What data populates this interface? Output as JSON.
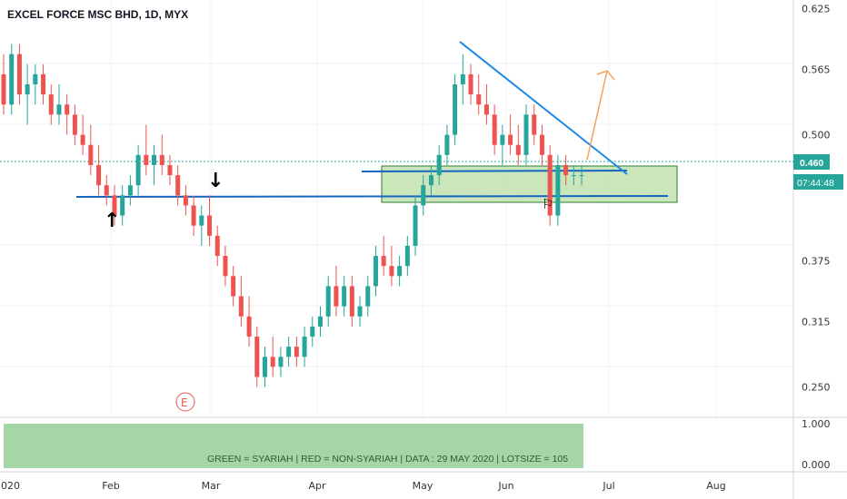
{
  "chart_data": {
    "type": "candlestick",
    "title": "EXCEL FORCE MSC BHD, 1D, MYX",
    "y_ticks": [
      "0.625",
      "0.565",
      "0.500",
      "0.375",
      "0.315",
      "0.250"
    ],
    "x_ticks": [
      "2020",
      "Feb",
      "Mar",
      "Apr",
      "May",
      "Jun",
      "Jul",
      "Aug"
    ],
    "ylim": [
      0.22,
      0.63
    ],
    "last_price": "0.460",
    "countdown": "07:44:48",
    "up_color": "#26a69a",
    "down_color": "#ef5350",
    "candles": [
      [
        0.56,
        0.58,
        0.52,
        0.53
      ],
      [
        0.53,
        0.59,
        0.52,
        0.58
      ],
      [
        0.58,
        0.59,
        0.53,
        0.54
      ],
      [
        0.54,
        0.57,
        0.51,
        0.55
      ],
      [
        0.55,
        0.57,
        0.53,
        0.56
      ],
      [
        0.56,
        0.57,
        0.53,
        0.54
      ],
      [
        0.54,
        0.55,
        0.51,
        0.52
      ],
      [
        0.52,
        0.55,
        0.51,
        0.53
      ],
      [
        0.53,
        0.54,
        0.5,
        0.52
      ],
      [
        0.52,
        0.53,
        0.49,
        0.5
      ],
      [
        0.5,
        0.52,
        0.48,
        0.49
      ],
      [
        0.49,
        0.51,
        0.46,
        0.47
      ],
      [
        0.47,
        0.49,
        0.44,
        0.45
      ],
      [
        0.45,
        0.46,
        0.43,
        0.44
      ],
      [
        0.44,
        0.45,
        0.41,
        0.42
      ],
      [
        0.42,
        0.45,
        0.41,
        0.44
      ],
      [
        0.44,
        0.46,
        0.43,
        0.45
      ],
      [
        0.45,
        0.49,
        0.44,
        0.48
      ],
      [
        0.48,
        0.51,
        0.46,
        0.47
      ],
      [
        0.47,
        0.49,
        0.45,
        0.48
      ],
      [
        0.48,
        0.5,
        0.46,
        0.47
      ],
      [
        0.47,
        0.48,
        0.45,
        0.46
      ],
      [
        0.46,
        0.47,
        0.43,
        0.44
      ],
      [
        0.44,
        0.45,
        0.42,
        0.43
      ],
      [
        0.43,
        0.44,
        0.4,
        0.41
      ],
      [
        0.41,
        0.43,
        0.39,
        0.42
      ],
      [
        0.42,
        0.44,
        0.39,
        0.4
      ],
      [
        0.4,
        0.41,
        0.37,
        0.38
      ],
      [
        0.38,
        0.39,
        0.35,
        0.36
      ],
      [
        0.36,
        0.37,
        0.33,
        0.34
      ],
      [
        0.34,
        0.36,
        0.31,
        0.32
      ],
      [
        0.32,
        0.34,
        0.29,
        0.3
      ],
      [
        0.3,
        0.31,
        0.25,
        0.26
      ],
      [
        0.26,
        0.29,
        0.25,
        0.28
      ],
      [
        0.28,
        0.3,
        0.26,
        0.27
      ],
      [
        0.27,
        0.29,
        0.26,
        0.28
      ],
      [
        0.28,
        0.3,
        0.27,
        0.29
      ],
      [
        0.29,
        0.3,
        0.27,
        0.28
      ],
      [
        0.28,
        0.31,
        0.27,
        0.3
      ],
      [
        0.3,
        0.32,
        0.29,
        0.31
      ],
      [
        0.31,
        0.33,
        0.3,
        0.32
      ],
      [
        0.32,
        0.36,
        0.31,
        0.35
      ],
      [
        0.35,
        0.37,
        0.32,
        0.33
      ],
      [
        0.33,
        0.36,
        0.32,
        0.35
      ],
      [
        0.35,
        0.36,
        0.31,
        0.32
      ],
      [
        0.32,
        0.34,
        0.31,
        0.33
      ],
      [
        0.33,
        0.36,
        0.32,
        0.35
      ],
      [
        0.35,
        0.39,
        0.34,
        0.38
      ],
      [
        0.38,
        0.4,
        0.36,
        0.37
      ],
      [
        0.37,
        0.39,
        0.35,
        0.36
      ],
      [
        0.36,
        0.38,
        0.35,
        0.37
      ],
      [
        0.37,
        0.4,
        0.36,
        0.39
      ],
      [
        0.39,
        0.44,
        0.38,
        0.43
      ],
      [
        0.43,
        0.46,
        0.42,
        0.45
      ],
      [
        0.45,
        0.47,
        0.44,
        0.46
      ],
      [
        0.46,
        0.49,
        0.45,
        0.48
      ],
      [
        0.48,
        0.51,
        0.47,
        0.5
      ],
      [
        0.5,
        0.56,
        0.49,
        0.55
      ],
      [
        0.55,
        0.58,
        0.53,
        0.56
      ],
      [
        0.56,
        0.57,
        0.53,
        0.54
      ],
      [
        0.54,
        0.56,
        0.52,
        0.53
      ],
      [
        0.53,
        0.55,
        0.51,
        0.52
      ],
      [
        0.52,
        0.53,
        0.48,
        0.49
      ],
      [
        0.49,
        0.51,
        0.47,
        0.5
      ],
      [
        0.5,
        0.52,
        0.48,
        0.49
      ],
      [
        0.49,
        0.51,
        0.47,
        0.48
      ],
      [
        0.48,
        0.53,
        0.47,
        0.52
      ],
      [
        0.52,
        0.53,
        0.49,
        0.5
      ],
      [
        0.5,
        0.51,
        0.47,
        0.48
      ],
      [
        0.48,
        0.49,
        0.41,
        0.42
      ],
      [
        0.42,
        0.48,
        0.41,
        0.47
      ],
      [
        0.47,
        0.48,
        0.45,
        0.46
      ],
      [
        0.46,
        0.47,
        0.45,
        0.46
      ],
      [
        0.46,
        0.47,
        0.45,
        0.46
      ]
    ],
    "support_line_label": "",
    "zone_label": "",
    "arrow_up": "↑",
    "arrow_down": "↓",
    "earnings_marker": "E",
    "flag_marker": "⚐"
  },
  "indicator": {
    "text": "GREEN = SYARIAH   |   RED = NON-SYARIAH   |  DATA : 29 MAY 2020   |   LOTSIZE = 105",
    "y_ticks": [
      "1.000",
      "0.000"
    ],
    "color": "#a5d6a7"
  }
}
